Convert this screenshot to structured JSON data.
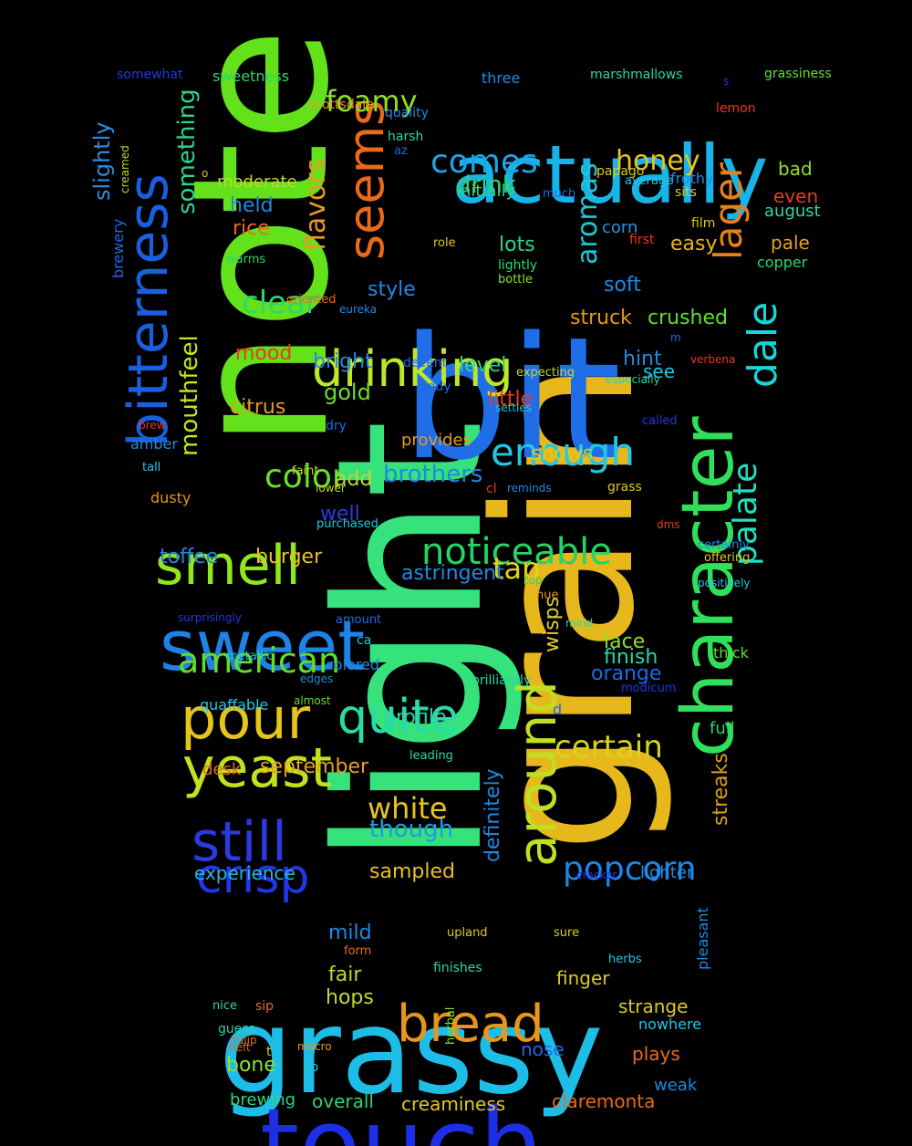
{
  "background": "#000000",
  "words": [
    {
      "text": "light",
      "color": "#36e27c"
    },
    {
      "text": "grain",
      "color": "#e6b81c"
    },
    {
      "text": "note",
      "color": "#63e21c"
    },
    {
      "text": "bit",
      "color": "#1f6ee8"
    },
    {
      "text": "grassy",
      "color": "#1ebde8"
    },
    {
      "text": "touch",
      "color": "#1c2fe6"
    },
    {
      "text": "actually",
      "color": "#18b4e8"
    },
    {
      "text": "character",
      "color": "#2ee05a"
    },
    {
      "text": "bitterness",
      "color": "#1a5fe0"
    },
    {
      "text": "sweet",
      "color": "#1e82e6"
    },
    {
      "text": "around",
      "color": "#bfe022"
    },
    {
      "text": "seems",
      "color": "#ea6a1a"
    },
    {
      "text": "drinking",
      "color": "#bde82a"
    },
    {
      "text": "smell",
      "color": "#8fe81c"
    },
    {
      "text": "still",
      "color": "#2a39e0"
    },
    {
      "text": "pour",
      "color": "#e6c41a"
    },
    {
      "text": "yeast",
      "color": "#c4e21c"
    },
    {
      "text": "bread",
      "color": "#e8961a"
    },
    {
      "text": "crisp",
      "color": "#2236e6"
    },
    {
      "text": "quite",
      "color": "#2adba8"
    },
    {
      "text": "noticeable",
      "color": "#22d664"
    },
    {
      "text": "enough",
      "color": "#1ec8e6"
    },
    {
      "text": "lager",
      "color": "#e8801a"
    },
    {
      "text": "dale",
      "color": "#1ad4d8"
    },
    {
      "text": "american",
      "color": "#5ee02a"
    },
    {
      "text": "popcorn",
      "color": "#1e86e8"
    },
    {
      "text": "palate",
      "color": "#1ee0c0"
    },
    {
      "text": "certain",
      "color": "#d6d41a"
    },
    {
      "text": "white",
      "color": "#e8c41e"
    },
    {
      "text": "clear",
      "color": "#2ad86c"
    },
    {
      "text": "color",
      "color": "#6ae02a"
    },
    {
      "text": "comes",
      "color": "#1ea2e8"
    },
    {
      "text": "foamy",
      "color": "#8ee02a"
    },
    {
      "text": "flavors",
      "color": "#e89a1e"
    },
    {
      "text": "aromas",
      "color": "#1ec8d6"
    },
    {
      "text": "honey",
      "color": "#e6c41c"
    },
    {
      "text": "mouthfeel",
      "color": "#c2e81c"
    },
    {
      "text": "drink",
      "color": "#2ad66a"
    },
    {
      "text": "tap",
      "color": "#e0d21a"
    },
    {
      "text": "brothers",
      "color": "#1e8ae0"
    },
    {
      "text": "though",
      "color": "#1e9ae6"
    },
    {
      "text": "something",
      "color": "#2ad68a"
    },
    {
      "text": "slightly",
      "color": "#2a8ee0"
    },
    {
      "text": "definitely",
      "color": "#1a8ae6"
    },
    {
      "text": "streaks",
      "color": "#d8a01a"
    },
    {
      "text": "wisps",
      "color": "#e0d02a"
    },
    {
      "text": "september",
      "color": "#e8a21a"
    },
    {
      "text": "sampled",
      "color": "#e6c21e"
    },
    {
      "text": "astringent",
      "color": "#1e8ae6"
    },
    {
      "text": "experience",
      "color": "#2ab8e0"
    },
    {
      "text": "creaminess",
      "color": "#e0c81e"
    },
    {
      "text": "claremonta",
      "color": "#ea6a1a"
    },
    {
      "text": "overall",
      "color": "#2ad66a"
    },
    {
      "text": "brewing",
      "color": "#2ad68a"
    },
    {
      "text": "mild",
      "color": "#1e8ae6"
    },
    {
      "text": "fair",
      "color": "#c2d81e"
    },
    {
      "text": "hops",
      "color": "#c2d82a"
    },
    {
      "text": "bone",
      "color": "#8ee02a"
    },
    {
      "text": "gold",
      "color": "#6ae02a"
    },
    {
      "text": "citrus",
      "color": "#e89a1e"
    },
    {
      "text": "bright",
      "color": "#1e8ae6"
    },
    {
      "text": "level",
      "color": "#2ad68a"
    },
    {
      "text": "little",
      "color": "#ea3a1a"
    },
    {
      "text": "shows",
      "color": "#e0c81e"
    },
    {
      "text": "provides",
      "color": "#e89a1e"
    },
    {
      "text": "add",
      "color": "#c2d82a"
    },
    {
      "text": "well",
      "color": "#2a3ae0"
    },
    {
      "text": "burger",
      "color": "#e8c21e"
    },
    {
      "text": "toffee",
      "color": "#1e8ae6"
    },
    {
      "text": "held",
      "color": "#1e8ae6"
    },
    {
      "text": "rice",
      "color": "#ea6a1a"
    },
    {
      "text": "moderate",
      "color": "#c2d82a"
    },
    {
      "text": "mood",
      "color": "#ea3a1a"
    },
    {
      "text": "style",
      "color": "#1e8ae6"
    },
    {
      "text": "struck",
      "color": "#e8961a"
    },
    {
      "text": "crushed",
      "color": "#5ee02a"
    },
    {
      "text": "soft",
      "color": "#1e8ae6"
    },
    {
      "text": "corn",
      "color": "#1e9ae6"
    },
    {
      "text": "easy",
      "color": "#e8b41a"
    },
    {
      "text": "lots",
      "color": "#2ad68a"
    },
    {
      "text": "initially",
      "color": "#2ad68a"
    },
    {
      "text": "hint",
      "color": "#1e8ae6"
    },
    {
      "text": "see",
      "color": "#1ec8e6"
    },
    {
      "text": "pale",
      "color": "#e8a21a"
    },
    {
      "text": "copper",
      "color": "#2ad66a"
    },
    {
      "text": "bad",
      "color": "#8ee02a"
    },
    {
      "text": "even",
      "color": "#ea3a1a"
    },
    {
      "text": "august",
      "color": "#2ad6a8"
    },
    {
      "text": "lace",
      "color": "#8ee02a"
    },
    {
      "text": "finish",
      "color": "#2ad6a8"
    },
    {
      "text": "orange",
      "color": "#1e6ae6"
    },
    {
      "text": "profile",
      "color": "#2ad6a8"
    },
    {
      "text": "full",
      "color": "#2ad66a"
    },
    {
      "text": "thick",
      "color": "#5ee02a"
    },
    {
      "text": "lighter",
      "color": "#1e8ae6"
    },
    {
      "text": "finger",
      "color": "#e0c81e"
    },
    {
      "text": "strange",
      "color": "#e0c81e"
    },
    {
      "text": "nowhere",
      "color": "#1ec8e6"
    },
    {
      "text": "plays",
      "color": "#ea6a1a"
    },
    {
      "text": "nose",
      "color": "#1e6ae6"
    },
    {
      "text": "weak",
      "color": "#1e8ae6"
    },
    {
      "text": "pleasant",
      "color": "#1e8ae6"
    },
    {
      "text": "desk",
      "color": "#ea6a1a"
    },
    {
      "text": "colored",
      "color": "#1e8ae6"
    },
    {
      "text": "quaffable",
      "color": "#1ec8e6"
    },
    {
      "text": "amber",
      "color": "#1e8ae6"
    },
    {
      "text": "brewery",
      "color": "#1e6ae6"
    },
    {
      "text": "dusty",
      "color": "#e8961a"
    },
    {
      "text": "sweetness",
      "color": "#2ad66a"
    },
    {
      "text": "somewhat",
      "color": "#1e3ae6"
    },
    {
      "text": "three",
      "color": "#1e8ae6"
    },
    {
      "text": "marshmallows",
      "color": "#2ad6a8"
    },
    {
      "text": "grassiness",
      "color": "#5ee02a"
    },
    {
      "text": "s",
      "color": "#1e3ae6"
    },
    {
      "text": "lemon",
      "color": "#ea3a1a"
    },
    {
      "text": "scottsdale",
      "color": "#e89a1e"
    },
    {
      "text": "quality",
      "color": "#1e8ae6"
    },
    {
      "text": "harsh",
      "color": "#2ad6a8"
    },
    {
      "text": "az",
      "color": "#1e6ae6"
    },
    {
      "text": "papago",
      "color": "#e0c81e"
    },
    {
      "text": "average",
      "color": "#1ec8e6"
    },
    {
      "text": "frothy",
      "color": "#1e8ae6"
    },
    {
      "text": "sits",
      "color": "#e0c81e"
    },
    {
      "text": "much",
      "color": "#1e6ae6"
    },
    {
      "text": "film",
      "color": "#e0c81e"
    },
    {
      "text": "first",
      "color": "#ea3a1a"
    },
    {
      "text": "role",
      "color": "#e0c81e"
    },
    {
      "text": "lightly",
      "color": "#2ad66a"
    },
    {
      "text": "bottle",
      "color": "#8ee02a"
    },
    {
      "text": "warms",
      "color": "#2ad66a"
    },
    {
      "text": "oriented",
      "color": "#ea6a1a"
    },
    {
      "text": "eureka",
      "color": "#1e8ae6"
    },
    {
      "text": "m",
      "color": "#1e6ae6"
    },
    {
      "text": "verbena",
      "color": "#ea3a1a"
    },
    {
      "text": "date",
      "color": "#1e6ae6"
    },
    {
      "text": "especially",
      "color": "#2ad6a8"
    },
    {
      "text": "expecting",
      "color": "#c2d82a"
    },
    {
      "text": "decent",
      "color": "#1e6ae6"
    },
    {
      "text": "body",
      "color": "#1e6ae6"
    },
    {
      "text": "settles",
      "color": "#1ec8e6"
    },
    {
      "text": "called",
      "color": "#1e3ae6"
    },
    {
      "text": "brew",
      "color": "#ea3a1a"
    },
    {
      "text": "dry",
      "color": "#1e6ae6"
    },
    {
      "text": "tall",
      "color": "#1ec8e6"
    },
    {
      "text": "faint",
      "color": "#c2d82a"
    },
    {
      "text": "lower",
      "color": "#c2d82a"
    },
    {
      "text": "cl",
      "color": "#ea3a1a"
    },
    {
      "text": "reminds",
      "color": "#1e8ae6"
    },
    {
      "text": "grass",
      "color": "#e0c81e"
    },
    {
      "text": "purchased",
      "color": "#1ec8e6"
    },
    {
      "text": "dms",
      "color": "#ea3a1a"
    },
    {
      "text": "certainly",
      "color": "#1e8ae6"
    },
    {
      "text": "offering",
      "color": "#e0c81e"
    },
    {
      "text": "positively",
      "color": "#1ec8e6"
    },
    {
      "text": "top",
      "color": "#2ad66a"
    },
    {
      "text": "hue",
      "color": "#e89a1e"
    },
    {
      "text": "mind",
      "color": "#2ad6a8"
    },
    {
      "text": "amount",
      "color": "#1e6ae6"
    },
    {
      "text": "ca",
      "color": "#1ec8e6"
    },
    {
      "text": "surprisingly",
      "color": "#1e3ae6"
    },
    {
      "text": "metallic",
      "color": "#1ec8e6"
    },
    {
      "text": "edges",
      "color": "#1e8ae6"
    },
    {
      "text": "almost",
      "color": "#5ee02a"
    },
    {
      "text": "brilliantly",
      "color": "#2ad6a8"
    },
    {
      "text": "d",
      "color": "#1e6ae6"
    },
    {
      "text": "modicum",
      "color": "#1e3ae6"
    },
    {
      "text": "leading",
      "color": "#2ad6a8"
    },
    {
      "text": "cracker",
      "color": "#1e3ae6"
    },
    {
      "text": "upland",
      "color": "#e0c81e"
    },
    {
      "text": "sure",
      "color": "#e0c81e"
    },
    {
      "text": "form",
      "color": "#ea6a1a"
    },
    {
      "text": "finishes",
      "color": "#2ad6a8"
    },
    {
      "text": "herbs",
      "color": "#1ec8e6"
    },
    {
      "text": "herbal",
      "color": "#8ee02a"
    },
    {
      "text": "nice",
      "color": "#2ad6a8"
    },
    {
      "text": "sip",
      "color": "#ea6a1a"
    },
    {
      "text": "guess",
      "color": "#2ad6a8"
    },
    {
      "text": "tulip",
      "color": "#ea6a1a"
    },
    {
      "text": "macro",
      "color": "#e89a1e"
    },
    {
      "text": "heft",
      "color": "#ea6a1a"
    },
    {
      "text": "t",
      "color": "#e0c81e"
    },
    {
      "text": "co",
      "color": "#1ec8e6"
    },
    {
      "text": "creamed",
      "color": "#c2d82a"
    },
    {
      "text": "o",
      "color": "#e0c81e"
    }
  ]
}
